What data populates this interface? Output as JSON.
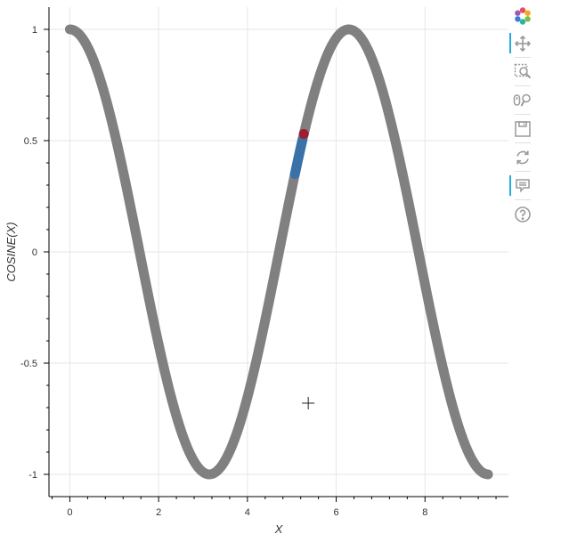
{
  "colors": {
    "curve": "#808080",
    "selection": "#3a72a8",
    "hover_point": "#a01c2f",
    "grid": "#e6e6e6",
    "axis": "#000000",
    "toolbar_active": "#26aae1",
    "toolbar_icon": "#9a9a9a"
  },
  "toolbar": {
    "tools": [
      {
        "icon": "bokeh-logo-icon",
        "active": false
      },
      {
        "icon": "pan-icon",
        "active": true
      },
      {
        "icon": "box-zoom-icon",
        "active": false
      },
      {
        "icon": "wheel-zoom-icon",
        "active": false
      },
      {
        "icon": "save-icon",
        "active": false
      },
      {
        "icon": "reset-icon",
        "active": false
      },
      {
        "icon": "hover-icon",
        "active": true
      },
      {
        "icon": "help-icon",
        "active": false
      }
    ]
  },
  "chart_data": {
    "type": "line",
    "function": "cos",
    "title": "",
    "xlabel": "X",
    "ylabel": "COSINE(X)",
    "xlim": [
      -0.47,
      9.88
    ],
    "ylim": [
      -1.1,
      1.1
    ],
    "x_ticks": [
      0,
      2,
      4,
      6,
      8
    ],
    "x_tick_labels": [
      "0",
      "2",
      "4",
      "6",
      "8"
    ],
    "y_ticks": [
      1,
      0.5,
      0,
      -0.5,
      -1
    ],
    "y_tick_labels": [
      "1",
      "0.5",
      "0",
      "-0.5",
      "-1"
    ],
    "grid": true,
    "series": [
      {
        "role": "line",
        "x_start": 0,
        "x_end": 9.42,
        "style": "thick"
      },
      {
        "role": "selection",
        "x_start": 5.07,
        "x_end": 5.24
      }
    ],
    "highlighted_point": {
      "x": 5.27,
      "y": 0.53
    },
    "crosshair": {
      "x": 5.37,
      "y": -0.68
    }
  }
}
